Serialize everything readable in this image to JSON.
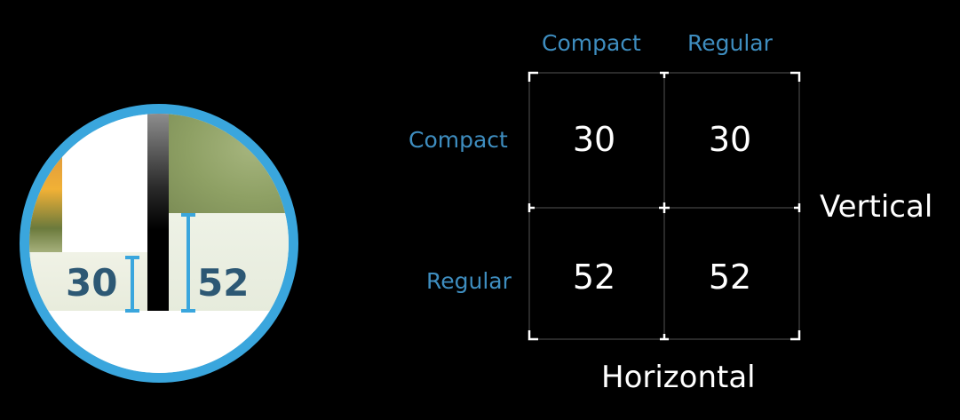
{
  "lens": {
    "left_value": "30",
    "right_value": "52"
  },
  "grid": {
    "column_headers": [
      "Compact",
      "Regular"
    ],
    "row_headers": [
      "Compact",
      "Regular"
    ],
    "cells": [
      [
        "30",
        "30"
      ],
      [
        "52",
        "52"
      ]
    ],
    "vertical_label": "Vertical",
    "horizontal_label": "Horizontal"
  },
  "colors": {
    "accent": "#3aa6dd",
    "header_text": "#3e8dbf",
    "number_text": "#2d5874"
  }
}
